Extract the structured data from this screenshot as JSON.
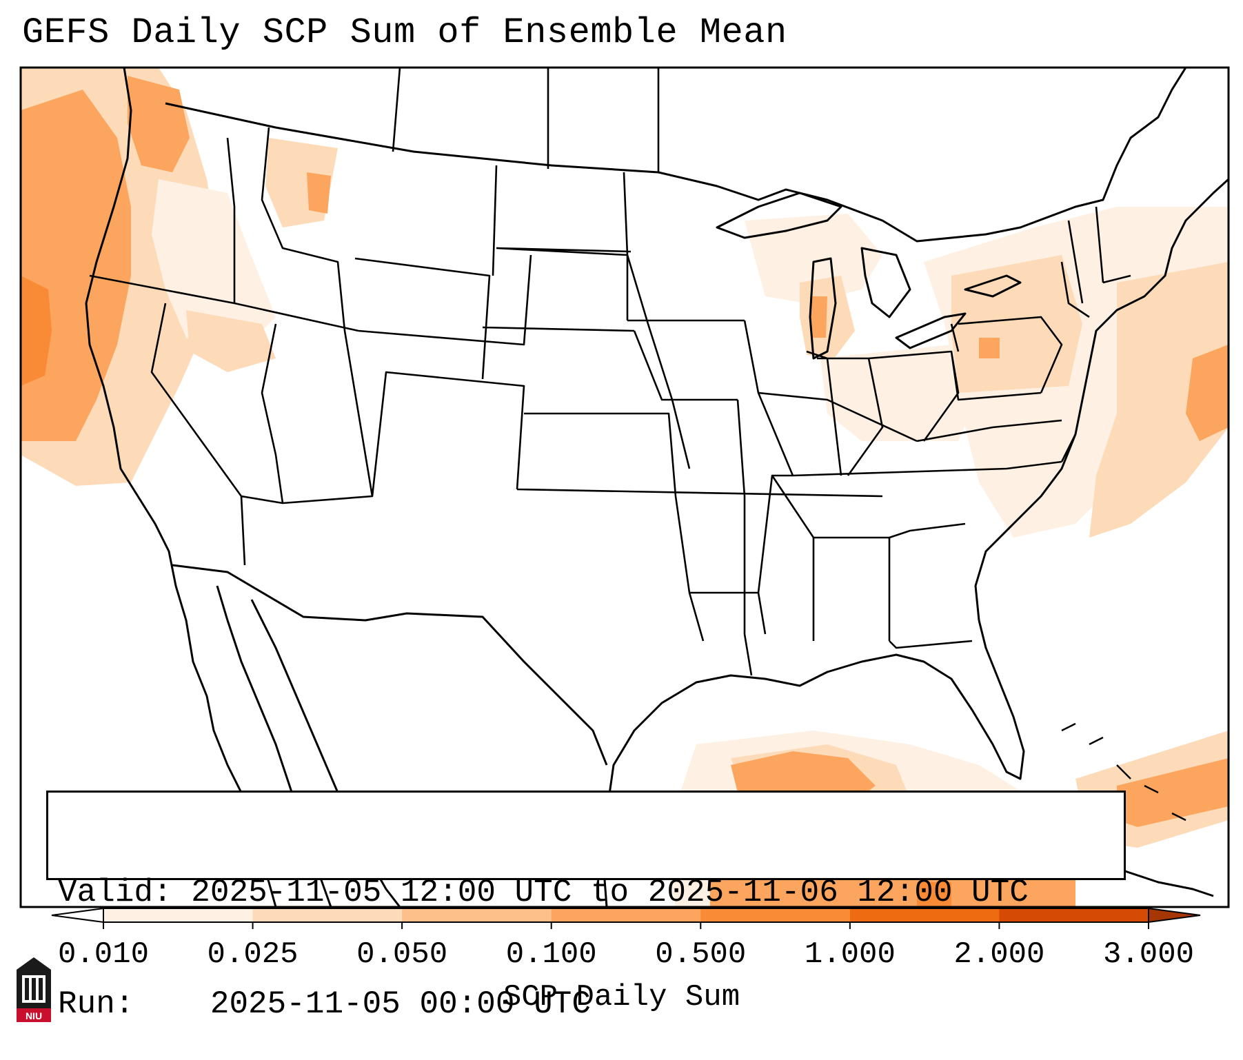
{
  "title": "GEFS Daily SCP Sum of Ensemble Mean",
  "info": {
    "valid_label": "Valid:",
    "valid_value": "2025-11-05 12:00 UTC to 2025-11-06 12:00 UTC",
    "run_label": "Run:",
    "run_value": "2025-11-05 00:00 UTC"
  },
  "colorbar": {
    "label": "SCP Daily Sum",
    "ticks": [
      "0.010",
      "0.025",
      "0.050",
      "0.100",
      "0.500",
      "1.000",
      "2.000",
      "3.000"
    ],
    "colors": [
      "#fef0e2",
      "#fddbb8",
      "#fdc08a",
      "#fca55e",
      "#f98a36",
      "#ef6b12",
      "#d54b04",
      "#a63603"
    ]
  },
  "logo": {
    "text": "NIU",
    "accent": "#c8102e"
  }
}
